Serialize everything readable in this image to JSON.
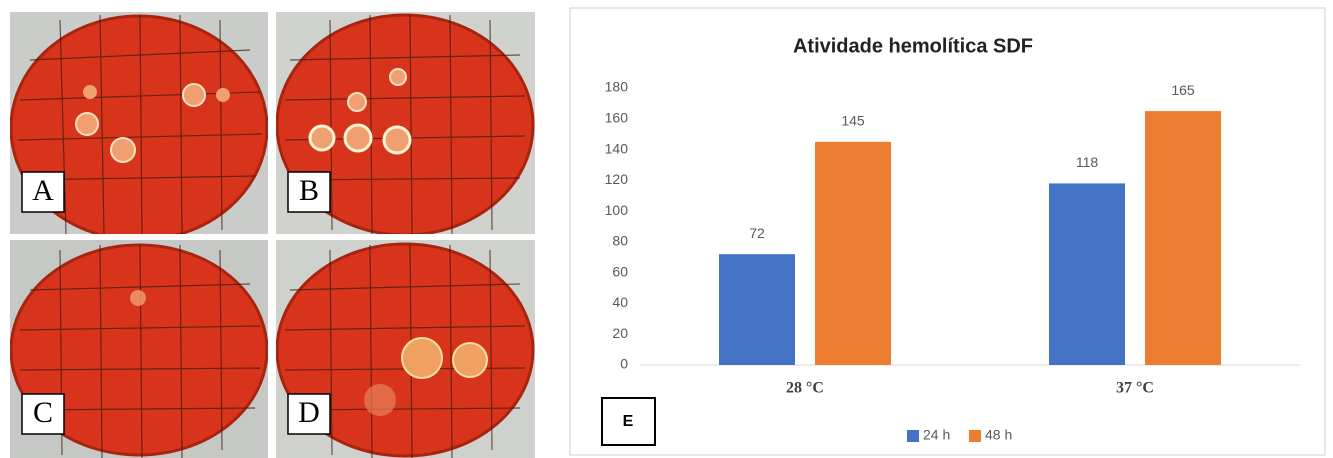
{
  "panels": {
    "labels": [
      "A",
      "B",
      "C",
      "D"
    ]
  },
  "chart_data": {
    "type": "bar",
    "title": "Atividade hemolítica SDF",
    "panel_label": "E",
    "categories": [
      "28 °C",
      "37 °C"
    ],
    "series": [
      {
        "name": "24 h",
        "color": "#4472c4",
        "values": [
          72,
          118
        ]
      },
      {
        "name": "48 h",
        "color": "#ed7d31",
        "values": [
          145,
          165
        ]
      }
    ],
    "ylim": [
      0,
      180
    ],
    "yticks": [
      0,
      20,
      40,
      60,
      80,
      100,
      120,
      140,
      160,
      180
    ],
    "grid": false,
    "legend": "bottom"
  }
}
